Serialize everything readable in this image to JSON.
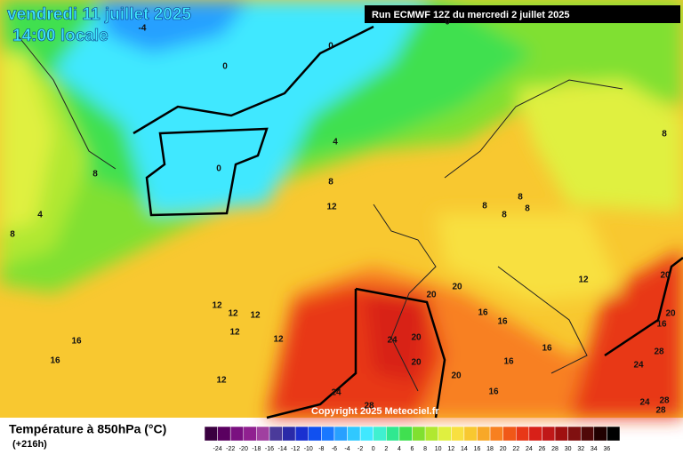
{
  "header": {
    "title": "vendredi 11 juillet 2025",
    "time": "14:00 locale",
    "run": "Run ECMWF 12Z du mercredi 2 juillet 2025"
  },
  "copyright": "Copyright 2025 Meteociel.fr",
  "legend": {
    "title": "Température à 850hPa (°C)",
    "lead": "(+216h)",
    "labels": [
      -24,
      -22,
      -20,
      -18,
      -16,
      -14,
      -12,
      -10,
      -8,
      -6,
      -4,
      -2,
      0,
      2,
      4,
      6,
      8,
      10,
      12,
      14,
      16,
      18,
      20,
      22,
      24,
      26,
      28,
      30,
      32,
      34,
      36
    ],
    "colors": [
      "#3a0040",
      "#5a0060",
      "#7a1080",
      "#902090",
      "#a040a0",
      "#4a3a9a",
      "#2a2aa8",
      "#1a30d0",
      "#1050f0",
      "#1a78ff",
      "#28a0ff",
      "#30c8ff",
      "#40e8ff",
      "#40f0d0",
      "#30e890",
      "#40e050",
      "#80e030",
      "#b0e830",
      "#e0f040",
      "#f8e040",
      "#f8c830",
      "#f8a828",
      "#f88020",
      "#f05818",
      "#e83818",
      "#d82018",
      "#c01818",
      "#a01010",
      "#801010",
      "#500808",
      "#200000",
      "#000000"
    ]
  },
  "map_labels": [
    0,
    0,
    -4,
    0,
    0,
    4,
    8,
    8,
    4,
    8,
    12,
    8,
    8,
    8,
    8,
    8,
    12,
    20,
    20,
    16,
    20,
    20,
    16,
    16,
    16,
    12,
    12,
    12,
    12,
    12,
    16,
    16,
    12,
    24,
    20,
    20,
    20,
    16,
    16,
    24,
    28,
    28,
    24,
    28,
    24,
    28
  ]
}
